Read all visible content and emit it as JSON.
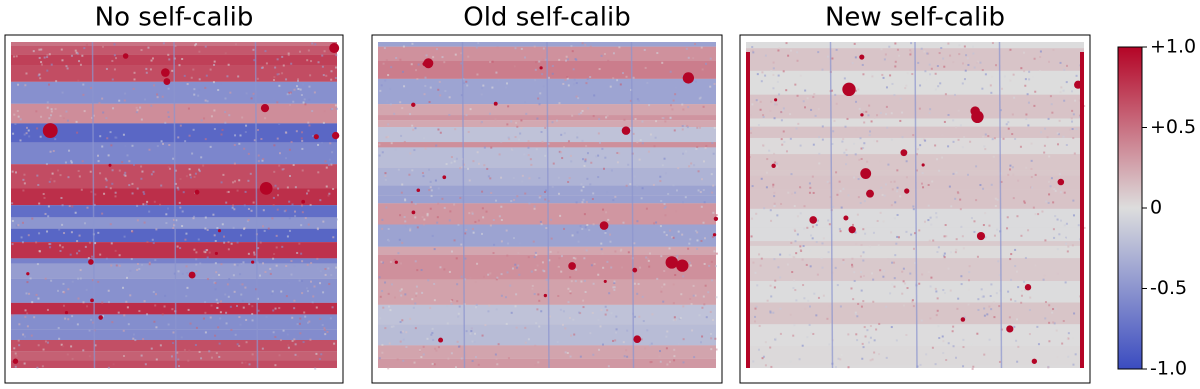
{
  "chart_data": [
    {
      "type": "image",
      "title": "No self-calib"
    },
    {
      "type": "image",
      "title": "Old self-calib"
    },
    {
      "type": "image",
      "title": "New self-calib"
    },
    {
      "type": "colorbar",
      "ylim": [
        -1.0,
        1.0
      ],
      "yticks": [
        {
          "value": 1.0,
          "label": "+1.0"
        },
        {
          "value": 0.5,
          "label": "+0.5"
        },
        0,
        {
          "value": -0.5,
          "label": "-0.5"
        },
        {
          "value": -1.0,
          "label": "-1.0"
        }
      ],
      "colors": [
        "#3b4cc0",
        "#dddddd",
        "#b40426"
      ]
    }
  ]
}
